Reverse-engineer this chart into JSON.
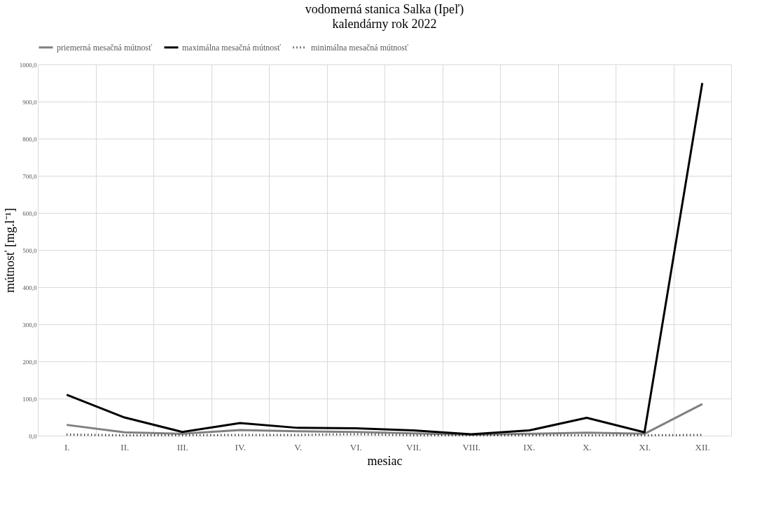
{
  "chart_data": {
    "type": "line",
    "title": "vodomerná stanica Salka (Ipeľ)",
    "subtitle": "kalendárny rok 2022",
    "xlabel": "mesiac",
    "ylabel": "mútnosť [mg.l⁻¹]",
    "categories": [
      "I.",
      "II.",
      "III.",
      "IV.",
      "V.",
      "VI.",
      "VII.",
      "VIII.",
      "IX.",
      "X.",
      "XI.",
      "XII."
    ],
    "series": [
      {
        "name": "priemerná mesačná mútnosť",
        "color": "#808080",
        "line_style": "solid",
        "values": [
          29,
          9,
          5,
          15,
          12,
          10,
          6,
          3,
          5,
          8,
          5,
          85
        ]
      },
      {
        "name": "maximálna mesačná mútnosť",
        "color": "#000000",
        "line_style": "solid",
        "values": [
          110,
          49,
          10,
          34,
          21,
          20,
          14,
          4,
          14,
          48,
          9,
          950
        ]
      },
      {
        "name": "minimálna mesačná mútnosť",
        "color": "#000000",
        "line_style": "dotted",
        "values": [
          3,
          1,
          1,
          2,
          2,
          4,
          1,
          1,
          1,
          1,
          1,
          2
        ]
      }
    ],
    "ylim": [
      0,
      1000
    ],
    "yticks": [
      {
        "value": 0,
        "label": "0,0"
      },
      {
        "value": 100,
        "label": "100,0"
      },
      {
        "value": 200,
        "label": "200,0"
      },
      {
        "value": 300,
        "label": "300,0"
      },
      {
        "value": 400,
        "label": "400,0"
      },
      {
        "value": 500,
        "label": "500,0"
      },
      {
        "value": 600,
        "label": "600,0"
      },
      {
        "value": 700,
        "label": "700,0"
      },
      {
        "value": 800,
        "label": "800,0"
      },
      {
        "value": 900,
        "label": "900,0"
      },
      {
        "value": 1000,
        "label": "1000,0"
      }
    ],
    "grid": true,
    "legend": "top",
    "marker": "none"
  }
}
